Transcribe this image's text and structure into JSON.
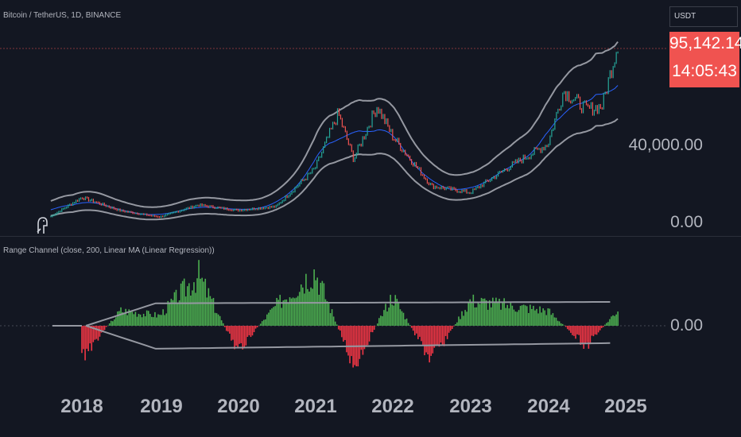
{
  "header": {
    "symbol": "Bitcoin / TetherUS, 1D, BINANCE"
  },
  "indicator": {
    "title": "Range Channel (close, 200, Linear MA (Linear Regression))"
  },
  "price_axis": {
    "currency": "USDT",
    "last_price": "95,142.14",
    "countdown": "14:05:43",
    "labels": [
      "40,000.00",
      "0.00"
    ]
  },
  "oscillator_axis": {
    "zero_label": "0.00"
  },
  "time_axis": {
    "years": [
      "2018",
      "2019",
      "2020",
      "2021",
      "2022",
      "2023",
      "2024",
      "2025"
    ]
  },
  "colors": {
    "background": "#131722",
    "candle_up": "#26a69a",
    "candle_down": "#ef5350",
    "channel": "#9598a1",
    "midline": "#2962ff",
    "hist_positive": "#4caf50",
    "hist_negative": "#f23645",
    "price_tag": "#f05350"
  },
  "chart_data": [
    {
      "type": "line",
      "title": "Bitcoin / TetherUS, 1D, BINANCE",
      "x": [
        2017.6,
        2018.0,
        2018.5,
        2019.0,
        2019.5,
        2020.0,
        2020.5,
        2021.0,
        2021.3,
        2021.5,
        2021.8,
        2022.0,
        2022.5,
        2023.0,
        2023.5,
        2024.0,
        2024.2,
        2024.5,
        2024.7,
        2024.9
      ],
      "series": [
        {
          "name": "close",
          "values": [
            4000,
            14000,
            7000,
            3700,
            10000,
            7200,
            9200,
            29000,
            58000,
            34000,
            62000,
            46000,
            20000,
            16500,
            30000,
            42000,
            70000,
            60000,
            62000,
            95142
          ]
        }
      ],
      "ylim": [
        0,
        100000
      ],
      "yticks": [
        0,
        40000
      ]
    },
    {
      "type": "area",
      "title": "Range Channel (close, 200, Linear MA (Linear Regression))",
      "x": [
        2018.0,
        2018.5,
        2019.0,
        2019.5,
        2020.0,
        2020.5,
        2021.0,
        2021.5,
        2022.0,
        2022.5,
        2023.0,
        2023.5,
        2024.0,
        2024.5,
        2025.0
      ],
      "series": [
        {
          "name": "histogram",
          "values": [
            -0.6,
            0.3,
            0.2,
            1.0,
            -0.5,
            0.4,
            1.1,
            -0.8,
            0.6,
            -0.7,
            0.5,
            0.4,
            0.3,
            -0.4,
            0.5
          ]
        }
      ],
      "ylim": [
        -1,
        1
      ],
      "yticks": [
        0
      ]
    }
  ]
}
